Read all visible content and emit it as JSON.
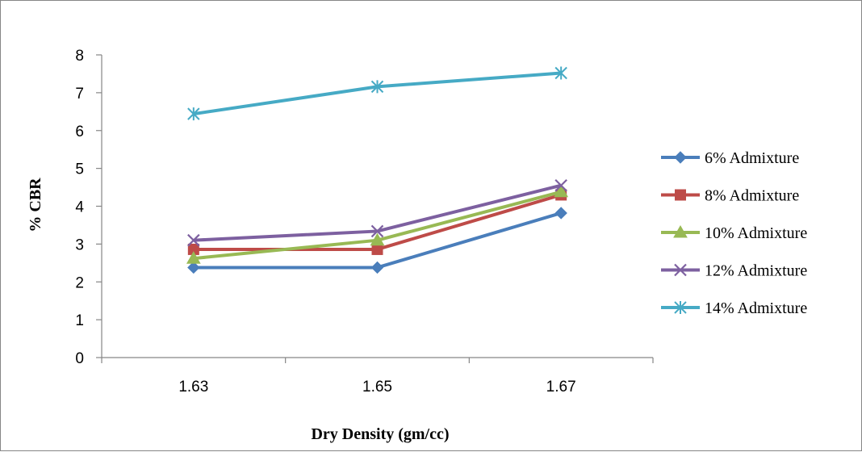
{
  "chart_data": {
    "type": "line",
    "title": "",
    "xlabel": "Dry Density (gm/cc)",
    "ylabel": "% CBR",
    "categories": [
      "1.63",
      "1.65",
      "1.67"
    ],
    "ylim": [
      0,
      8
    ],
    "yticks": [
      "0",
      "1",
      "2",
      "3",
      "4",
      "5",
      "6",
      "7",
      "8"
    ],
    "grid": false,
    "legend_position": "right",
    "series": [
      {
        "name": "6% Admixture",
        "values": [
          2.38,
          2.38,
          3.82
        ],
        "color": "#4A7EBB",
        "marker": "diamond"
      },
      {
        "name": "8% Admixture",
        "values": [
          2.86,
          2.86,
          4.3
        ],
        "color": "#BE4B48",
        "marker": "square"
      },
      {
        "name": "10% Admixture",
        "values": [
          2.62,
          3.1,
          4.38
        ],
        "color": "#98B954",
        "marker": "triangle"
      },
      {
        "name": "12% Admixture",
        "values": [
          3.1,
          3.34,
          4.55
        ],
        "color": "#7D60A0",
        "marker": "x"
      },
      {
        "name": "14% Admixture",
        "values": [
          6.44,
          7.16,
          7.52
        ],
        "color": "#46AAC5",
        "marker": "star"
      }
    ]
  }
}
